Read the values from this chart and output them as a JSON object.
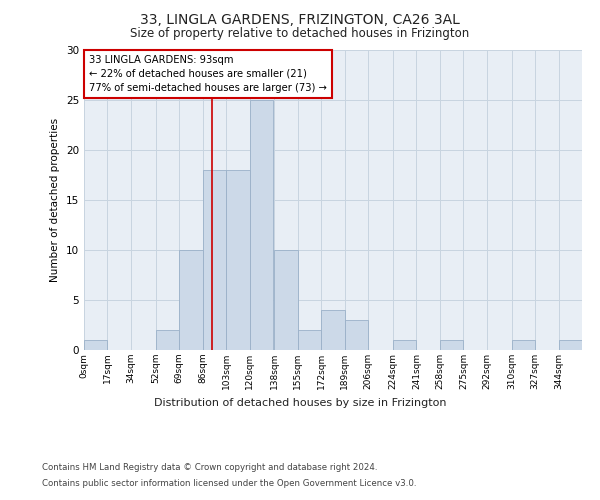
{
  "title1": "33, LINGLA GARDENS, FRIZINGTON, CA26 3AL",
  "title2": "Size of property relative to detached houses in Frizington",
  "xlabel": "Distribution of detached houses by size in Frizington",
  "ylabel": "Number of detached properties",
  "bin_labels": [
    "0sqm",
    "17sqm",
    "34sqm",
    "52sqm",
    "69sqm",
    "86sqm",
    "103sqm",
    "120sqm",
    "138sqm",
    "155sqm",
    "172sqm",
    "189sqm",
    "206sqm",
    "224sqm",
    "241sqm",
    "258sqm",
    "275sqm",
    "292sqm",
    "310sqm",
    "327sqm",
    "344sqm"
  ],
  "bin_edges": [
    0,
    17,
    34,
    52,
    69,
    86,
    103,
    120,
    138,
    155,
    172,
    189,
    206,
    224,
    241,
    258,
    275,
    292,
    310,
    327,
    344,
    361
  ],
  "bar_heights": [
    1,
    0,
    0,
    2,
    10,
    18,
    18,
    25,
    10,
    2,
    4,
    3,
    0,
    1,
    0,
    1,
    0,
    0,
    1,
    0,
    1
  ],
  "bar_color": "#ccd9e8",
  "bar_edge_color": "#9ab0c8",
  "red_line_x": 93,
  "annotation_line1": "33 LINGLA GARDENS: 93sqm",
  "annotation_line2": "← 22% of detached houses are smaller (21)",
  "annotation_line3": "77% of semi-detached houses are larger (73) →",
  "annotation_box_color": "#ffffff",
  "annotation_box_edge": "#cc0000",
  "red_line_color": "#cc0000",
  "ylim": [
    0,
    30
  ],
  "yticks": [
    0,
    5,
    10,
    15,
    20,
    25,
    30
  ],
  "footnote1": "Contains HM Land Registry data © Crown copyright and database right 2024.",
  "footnote2": "Contains public sector information licensed under the Open Government Licence v3.0.",
  "grid_color": "#c8d4e0",
  "bg_color": "#e8eef5"
}
